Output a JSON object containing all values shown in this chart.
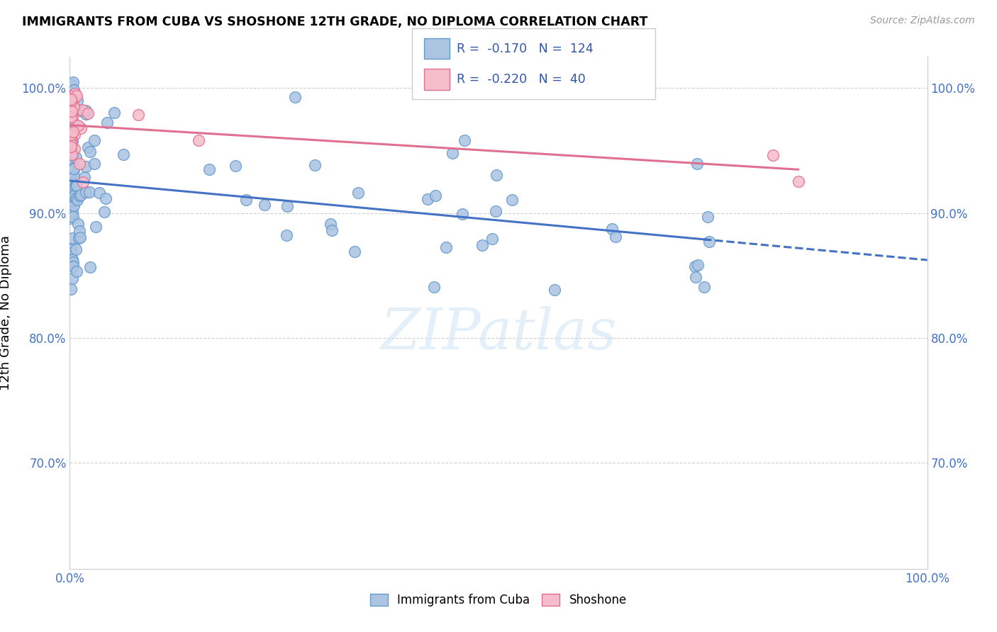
{
  "title": "IMMIGRANTS FROM CUBA VS SHOSHONE 12TH GRADE, NO DIPLOMA CORRELATION CHART",
  "source": "Source: ZipAtlas.com",
  "ylabel": "12th Grade, No Diploma",
  "xmin": 0.0,
  "xmax": 1.0,
  "ymin": 0.615,
  "ymax": 1.025,
  "yticks": [
    0.7,
    0.8,
    0.9,
    1.0
  ],
  "ytick_labels": [
    "70.0%",
    "80.0%",
    "90.0%",
    "100.0%"
  ],
  "cuba_R": "-0.170",
  "cuba_N": "124",
  "shoshone_R": "-0.220",
  "shoshone_N": "40",
  "cuba_color": "#aac4e2",
  "cuba_edge_color": "#6699cc",
  "shoshone_color": "#f5bccb",
  "shoshone_edge_color": "#e07090",
  "trend_cuba_color": "#4472c4",
  "trend_shoshone_color": "#e07090",
  "watermark": "ZIPatlas",
  "grid_color": "#d0d0d0",
  "cuba_intercept": 0.926,
  "cuba_slope": -0.072,
  "shoshone_intercept": 0.974,
  "shoshone_slope": -0.04
}
